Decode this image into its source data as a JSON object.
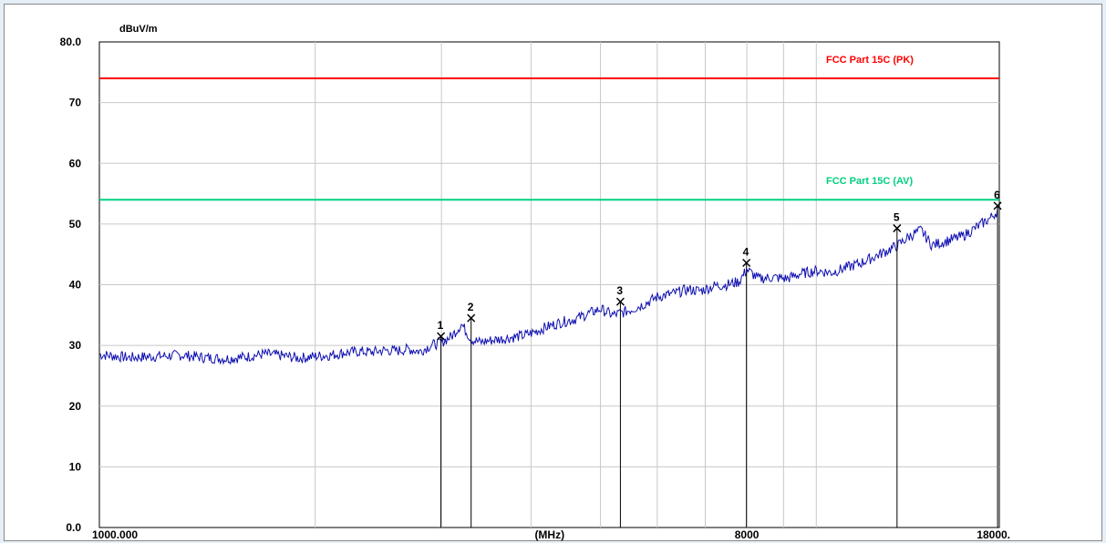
{
  "chart_data": {
    "type": "line",
    "title": "",
    "ylabel": "dBuV/m",
    "xlabel": "(MHz)",
    "ylim": [
      0,
      80
    ],
    "xscale": "log",
    "xlim": [
      1000,
      18000
    ],
    "yticks": [
      "80.0",
      "70",
      "60",
      "50",
      "40",
      "30",
      "20",
      "10",
      "0.0"
    ],
    "xtick_labels": [
      {
        "value": 1000,
        "label": "1000.000"
      },
      {
        "value": 4246,
        "label": "(MHz)"
      },
      {
        "value": 8000,
        "label": "8000"
      },
      {
        "value": 18000,
        "label": "18000."
      }
    ],
    "grid": true,
    "limits": [
      {
        "name": "FCC Part 15C (PK)",
        "value": 74,
        "color": "#ff0000"
      },
      {
        "name": "FCC Part 15C (AV)",
        "value": 54,
        "color": "#00d080"
      }
    ],
    "series": [
      {
        "color": "#1010b0",
        "x": [
          1000,
          1100,
          1200,
          1300,
          1400,
          1500,
          1600,
          1700,
          1800,
          1900,
          2000,
          2100,
          2200,
          2300,
          2400,
          2500,
          2600,
          2700,
          2800,
          2900,
          3000,
          3100,
          3200,
          3300,
          3400,
          3500,
          3600,
          3700,
          3800,
          3900,
          4000,
          4200,
          4400,
          4600,
          4800,
          5000,
          5200,
          5400,
          5600,
          5800,
          6000,
          6300,
          6600,
          6900,
          7200,
          7500,
          7800,
          8000,
          8300,
          8700,
          9100,
          9500,
          10000,
          10500,
          11000,
          11500,
          12000,
          12500,
          13000,
          13500,
          14000,
          14500,
          15000,
          15500,
          16000,
          16500,
          17000,
          17500,
          18000
        ],
        "y": [
          28.5,
          28.0,
          28.2,
          28.4,
          28.0,
          27.8,
          28.1,
          28.6,
          28.3,
          27.9,
          28.2,
          28.4,
          28.8,
          29.0,
          28.9,
          29.2,
          29.1,
          29.4,
          29.0,
          30.0,
          30.5,
          31.5,
          33.5,
          31.0,
          30.5,
          30.8,
          31.0,
          31.2,
          31.4,
          31.6,
          32.0,
          33.0,
          33.8,
          34.3,
          35.2,
          36.0,
          35.0,
          35.5,
          36.2,
          37.0,
          38.0,
          38.5,
          39.2,
          39.0,
          39.8,
          40.0,
          40.5,
          42.5,
          41.0,
          41.2,
          41.0,
          41.8,
          42.3,
          42.0,
          42.8,
          43.5,
          44.5,
          45.5,
          46.5,
          48.0,
          49.0,
          46.5,
          47.0,
          47.5,
          48.0,
          49.0,
          50.0,
          51.0,
          52.5
        ]
      }
    ],
    "markers": [
      {
        "label": "1",
        "x": 2995,
        "y": 31.5
      },
      {
        "label": "2",
        "x": 3300,
        "y": 34.5
      },
      {
        "label": "3",
        "x": 5330,
        "y": 37.2
      },
      {
        "label": "4",
        "x": 7990,
        "y": 43.6
      },
      {
        "label": "5",
        "x": 12960,
        "y": 49.3
      },
      {
        "label": "6",
        "x": 17900,
        "y": 53.0
      }
    ]
  }
}
